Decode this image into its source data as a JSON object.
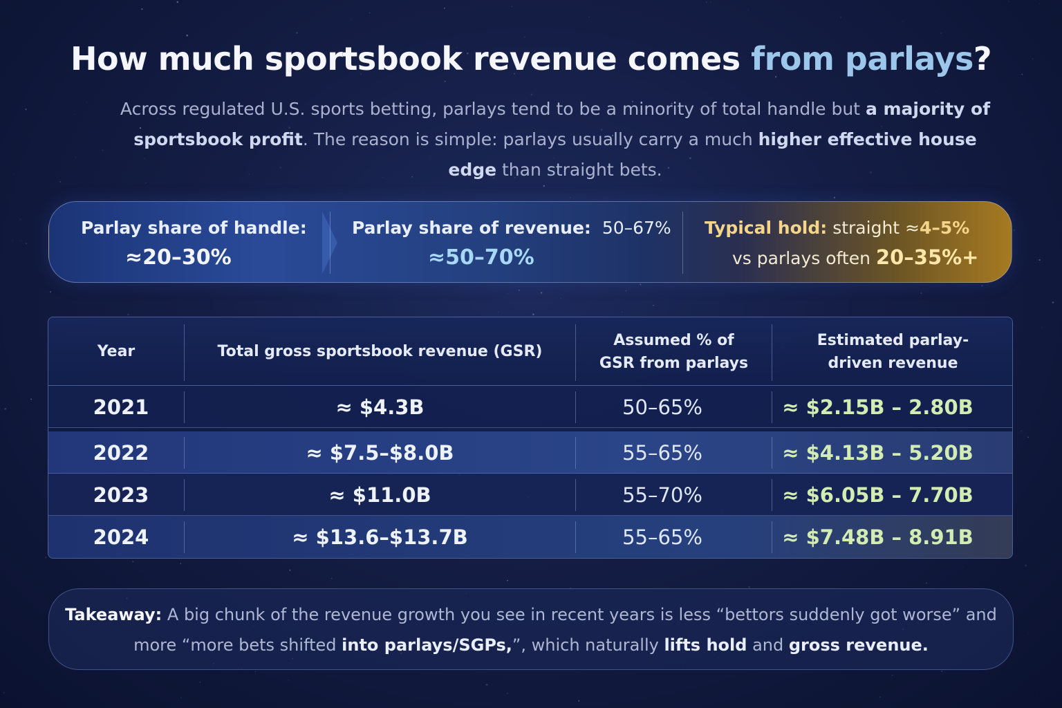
{
  "title": {
    "part1": "How much sportsbook revenue comes ",
    "highlight": "from parlays",
    "part2": "?"
  },
  "intro": {
    "t1": "Across regulated U.S. sports betting, parlays tend to be a minority of total handle but ",
    "b1": "a majority of sportsbook profit",
    "t2": ". The reason is simple: parlays usually carry a much ",
    "b2": "higher effective house edge",
    "t3": " than straight bets."
  },
  "stats": {
    "handle_label": "Parlay share of handle:",
    "handle_value": "≈20–30%",
    "revenue_label": "Parlay share of revenue:",
    "revenue_range": "50–67%",
    "revenue_value": "≈50–70%",
    "hold_label": "Typical hold:",
    "hold_straight_text": "straight ≈",
    "hold_straight_value": "4–5%",
    "hold_parlay_text": "vs parlays often ",
    "hold_parlay_value": "20–35%+"
  },
  "chart_data": {
    "type": "table",
    "columns": [
      "Year",
      "Total gross sportsbook revenue (GSR)",
      "Assumed % of GSR from parlays",
      "Estimated parlay-driven revenue"
    ],
    "rows": [
      {
        "year": "2021",
        "gsr": "≈ $4.3B",
        "pct": "50–65%",
        "est": "≈ $2.15B – 2.80B"
      },
      {
        "year": "2022",
        "gsr": "≈ $7.5–$8.0B",
        "pct": "55–65%",
        "est": "≈ $4.13B – 5.20B"
      },
      {
        "year": "2023",
        "gsr": "≈ $11.0B",
        "pct": "55–70%",
        "est": "≈ $6.05B – 7.70B"
      },
      {
        "year": "2024",
        "gsr": "≈ $13.6–$13.7B",
        "pct": "55–65%",
        "est": "≈ $7.48B – 8.91B"
      }
    ]
  },
  "takeaway": {
    "label": "Takeaway:",
    "t1": " A big chunk of the revenue growth you see in recent years is less “bettors suddenly got worse” and more “more bets shifted ",
    "b1": "into parlays/SGPs,",
    "t2": "”, which naturally ",
    "b2": "lifts hold",
    "t3": " and ",
    "b3": "gross revenue.",
    "t4": ""
  }
}
